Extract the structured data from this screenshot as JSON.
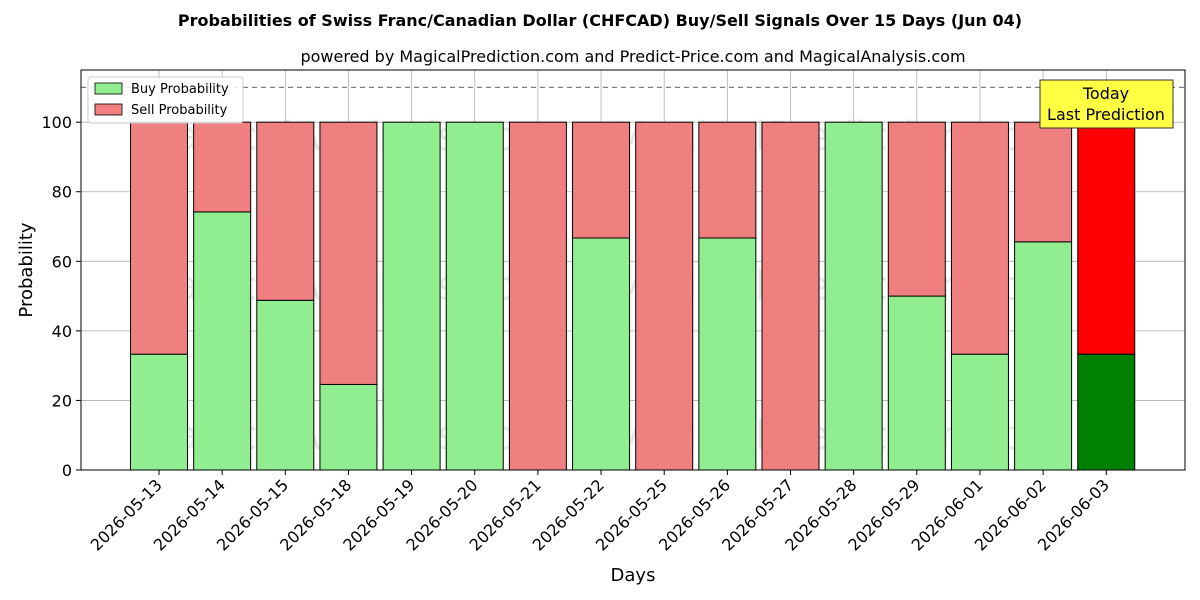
{
  "chart_data": {
    "type": "bar",
    "stacked": true,
    "title": "Probabilities of Swiss Franc/Canadian Dollar (CHFCAD) Buy/Sell Signals Over 15 Days (Jun 04)",
    "subtitle": "powered by MagicalPrediction.com and Predict-Price.com and MagicalAnalysis.com",
    "xlabel": "Days",
    "ylabel": "Probability",
    "ylim": [
      0,
      115
    ],
    "yticks": [
      0,
      20,
      40,
      60,
      80,
      100
    ],
    "grid": true,
    "legend_position": "top-left",
    "reference_line": 110,
    "categories": [
      "2026-05-13",
      "2026-05-14",
      "2026-05-15",
      "2026-05-18",
      "2026-05-19",
      "2026-05-20",
      "2026-05-21",
      "2026-05-22",
      "2026-05-25",
      "2026-05-26",
      "2026-05-27",
      "2026-05-28",
      "2026-05-29",
      "2026-06-01",
      "2026-06-02",
      "2026-06-03"
    ],
    "series": [
      {
        "name": "Buy Probability",
        "color": "#90ee90",
        "values": [
          33.3,
          74.2,
          48.8,
          24.6,
          100,
          100,
          0,
          66.7,
          0,
          66.7,
          0,
          100,
          50,
          33.3,
          65.6,
          33.3
        ]
      },
      {
        "name": "Sell Probability",
        "color": "#f08080",
        "values": [
          66.7,
          25.8,
          51.2,
          75.4,
          0,
          0,
          100,
          33.3,
          100,
          33.3,
          100,
          0,
          50,
          66.7,
          34.4,
          66.7
        ]
      }
    ],
    "highlight": {
      "index": 15,
      "buy_color": "#008000",
      "sell_color": "#ff0000"
    },
    "annotation": {
      "lines": [
        "Today",
        "Last Prediction"
      ],
      "background": "#ffff44"
    },
    "watermarks": [
      "MagicalAnalysis.com",
      "MagicalPrediction.com"
    ]
  }
}
